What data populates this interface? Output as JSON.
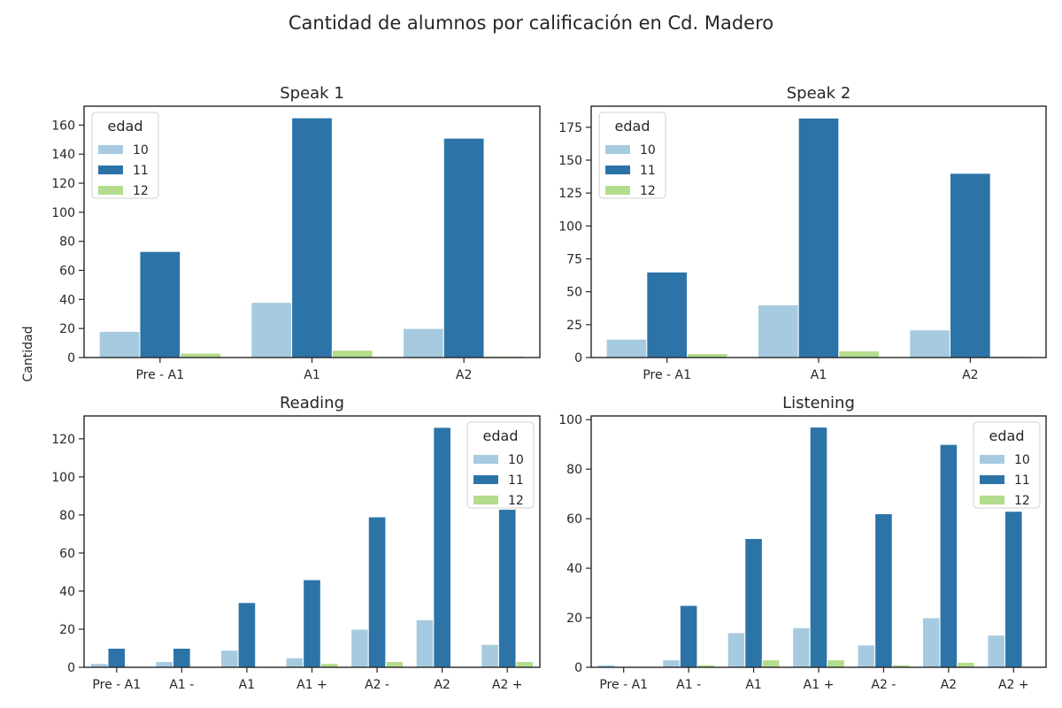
{
  "figure_title": "Cantidad de alumnos por calificación en Cd. Madero",
  "ylabel": "Cantidad",
  "legend_title": "edad",
  "colors": {
    "10": "#a6cbe0",
    "11": "#2c74a8",
    "12": "#b3dc8c"
  },
  "chart_data": [
    {
      "type": "bar",
      "title": "Speak 1",
      "categories": [
        "Pre - A1",
        "A1",
        "A2"
      ],
      "series": [
        {
          "name": "10",
          "values": [
            18,
            38,
            20
          ]
        },
        {
          "name": "11",
          "values": [
            73,
            165,
            151
          ]
        },
        {
          "name": "12",
          "values": [
            3,
            5,
            1
          ]
        }
      ],
      "ylim": [
        0,
        173
      ],
      "yticks": [
        0,
        20,
        40,
        60,
        80,
        100,
        120,
        140,
        160
      ],
      "legend": "top-left"
    },
    {
      "type": "bar",
      "title": "Speak 2",
      "categories": [
        "Pre - A1",
        "A1",
        "A2"
      ],
      "series": [
        {
          "name": "10",
          "values": [
            14,
            40,
            21
          ]
        },
        {
          "name": "11",
          "values": [
            65,
            182,
            140
          ]
        },
        {
          "name": "12",
          "values": [
            3,
            5,
            1
          ]
        }
      ],
      "ylim": [
        0,
        191
      ],
      "yticks": [
        0,
        25,
        50,
        75,
        100,
        125,
        150,
        175
      ],
      "legend": "top-left"
    },
    {
      "type": "bar",
      "title": "Reading",
      "categories": [
        "Pre - A1",
        "A1 -",
        "A1",
        "A1 +",
        "A2 -",
        "A2",
        "A2 +"
      ],
      "series": [
        {
          "name": "10",
          "values": [
            2,
            3,
            9,
            5,
            20,
            25,
            12
          ]
        },
        {
          "name": "11",
          "values": [
            10,
            10,
            34,
            46,
            79,
            126,
            83
          ]
        },
        {
          "name": "12",
          "values": [
            0,
            0,
            0,
            2,
            3,
            0,
            3
          ]
        }
      ],
      "ylim": [
        0,
        132
      ],
      "yticks": [
        0,
        20,
        40,
        60,
        80,
        100,
        120
      ],
      "legend": "top-right"
    },
    {
      "type": "bar",
      "title": "Listening",
      "categories": [
        "Pre - A1",
        "A1 -",
        "A1",
        "A1 +",
        "A2 -",
        "A2",
        "A2 +"
      ],
      "series": [
        {
          "name": "10",
          "values": [
            1,
            3,
            14,
            16,
            9,
            20,
            13
          ]
        },
        {
          "name": "11",
          "values": [
            0,
            25,
            52,
            97,
            62,
            90,
            63
          ]
        },
        {
          "name": "12",
          "values": [
            0,
            1,
            3,
            3,
            1,
            2,
            0
          ]
        }
      ],
      "ylim": [
        0,
        101.5
      ],
      "yticks": [
        0,
        20,
        40,
        60,
        80,
        100
      ],
      "legend": "top-right"
    }
  ]
}
